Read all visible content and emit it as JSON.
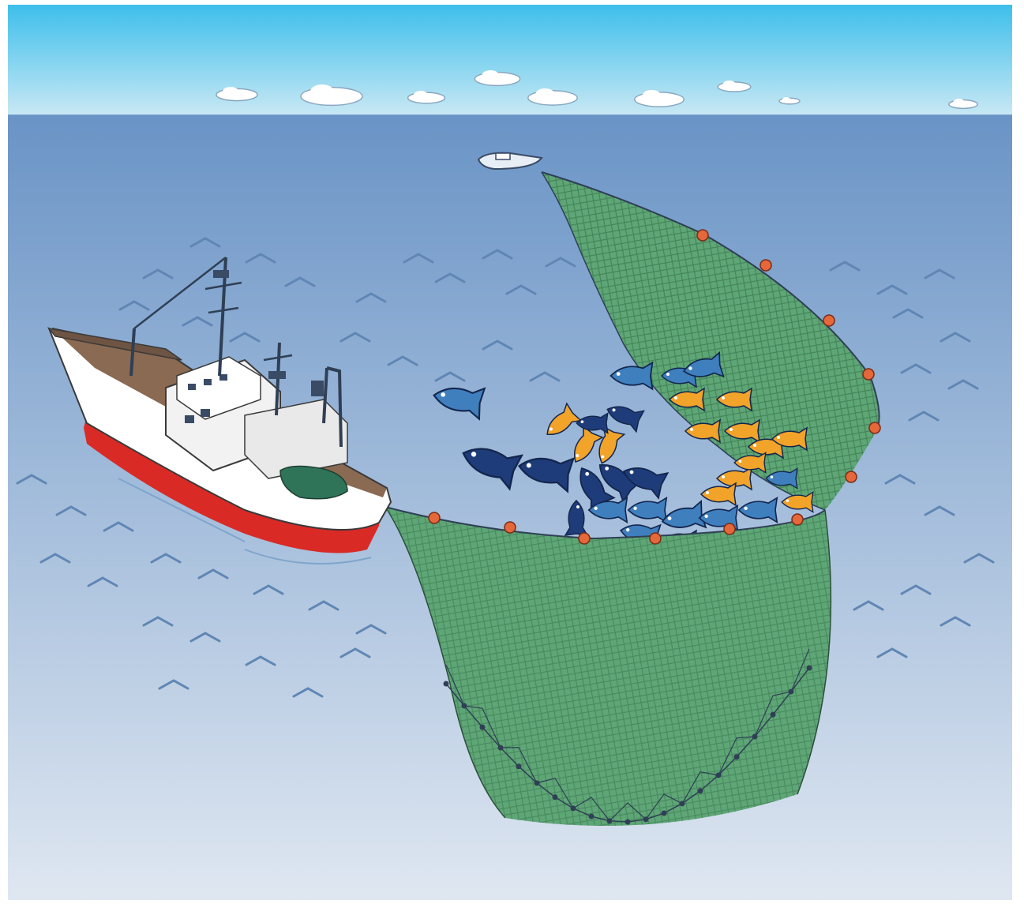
{
  "scene": {
    "subject": "purse-seine",
    "colors": {
      "sky_top": "#3dbfeb",
      "sky_horizon": "#c8e8f4",
      "sea_top": "#6a94c6",
      "sea_bottom": "#dfe7f1",
      "wave_mark": "#5f86b4",
      "net_fill": "#5fa677",
      "net_mesh": "#2d6a40",
      "net_rim": "#2f3f55",
      "float": "#e4683a",
      "hull_red": "#d92a26",
      "hull_white": "#ffffff",
      "deck_brown": "#8a6a52",
      "cabin_white": "#f2f2f2",
      "fish_navy": "#1f3c7a",
      "fish_blue": "#3f7fbe",
      "fish_orange": "#f2a32a"
    },
    "icons": [
      "cloud-icon",
      "purse-seiner-vessel-icon",
      "skiff-boat-icon",
      "fish-icon",
      "float-icon",
      "wave-mark-icon"
    ]
  }
}
